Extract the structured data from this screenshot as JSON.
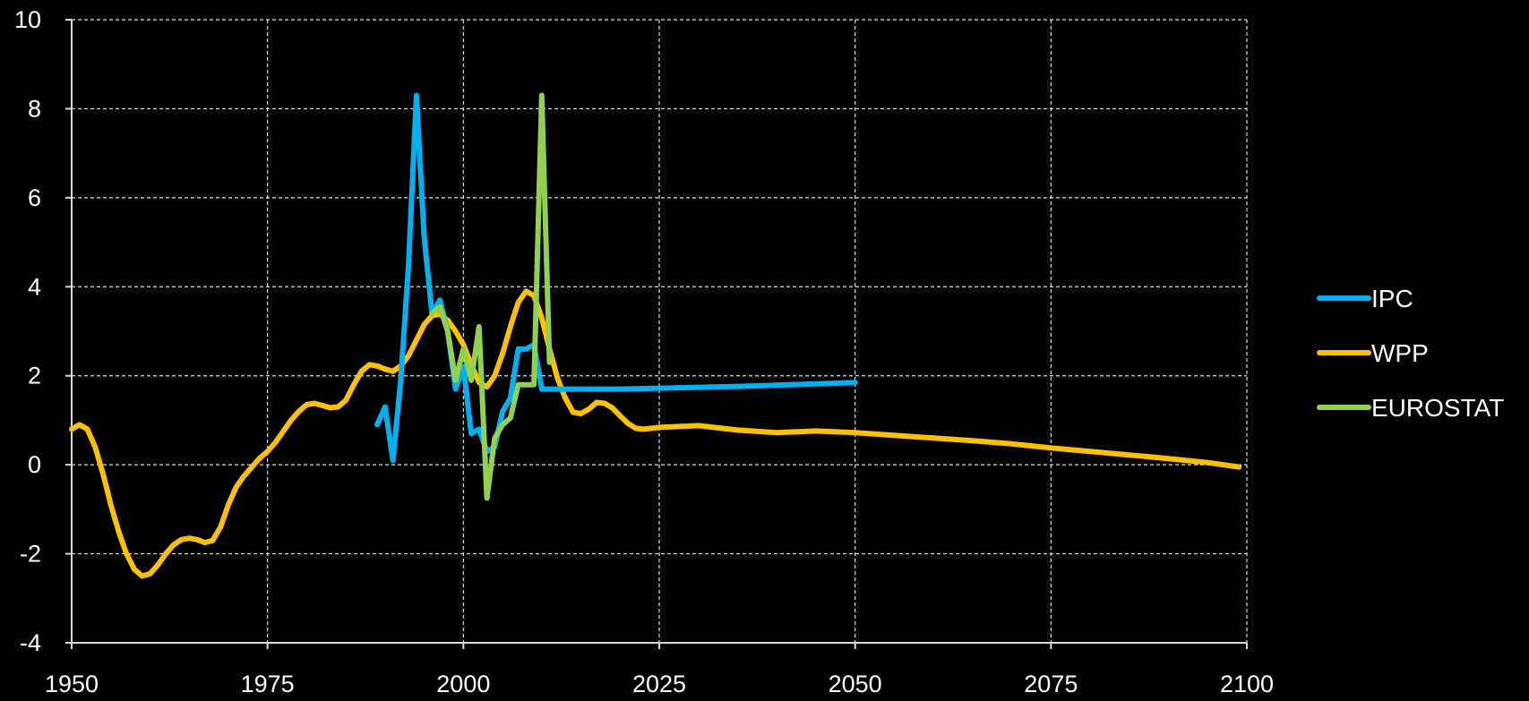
{
  "chart_data": {
    "type": "line",
    "title": "",
    "xlabel": "",
    "ylabel": "",
    "xlim": [
      1950,
      2100
    ],
    "ylim": [
      -4,
      10
    ],
    "x_ticks": [
      1950,
      1975,
      2000,
      2025,
      2050,
      2075,
      2100
    ],
    "y_ticks": [
      10,
      8,
      6,
      4,
      2,
      0,
      -2,
      -4
    ],
    "grid": true,
    "legend_position": "right",
    "background": "#000000",
    "series": [
      {
        "name": "IPC",
        "color": "#00b0f0",
        "points": [
          [
            1989,
            0.9
          ],
          [
            1990,
            1.3
          ],
          [
            1991,
            0.1
          ],
          [
            1992,
            1.9
          ],
          [
            1993,
            4.5
          ],
          [
            1994,
            8.3
          ],
          [
            1995,
            5.1
          ],
          [
            1996,
            3.4
          ],
          [
            1997,
            3.7
          ],
          [
            1998,
            3.0
          ],
          [
            1999,
            1.7
          ],
          [
            2000,
            2.2
          ],
          [
            2001,
            0.7
          ],
          [
            2002,
            0.8
          ],
          [
            2003,
            0.3
          ],
          [
            2004,
            0.4
          ],
          [
            2005,
            1.2
          ],
          [
            2006,
            1.5
          ],
          [
            2007,
            2.6
          ],
          [
            2008,
            2.6
          ],
          [
            2009,
            2.7
          ],
          [
            2010,
            1.7
          ],
          [
            2015,
            1.7
          ],
          [
            2020,
            1.7
          ],
          [
            2025,
            1.72
          ],
          [
            2030,
            1.74
          ],
          [
            2035,
            1.76
          ],
          [
            2040,
            1.79
          ],
          [
            2045,
            1.82
          ],
          [
            2050,
            1.85
          ]
        ]
      },
      {
        "name": "WPP",
        "color": "#ffc000",
        "points": [
          [
            1950,
            0.8
          ],
          [
            1951,
            0.9
          ],
          [
            1952,
            0.8
          ],
          [
            1953,
            0.4
          ],
          [
            1954,
            -0.2
          ],
          [
            1955,
            -0.9
          ],
          [
            1956,
            -1.5
          ],
          [
            1957,
            -2.0
          ],
          [
            1958,
            -2.35
          ],
          [
            1959,
            -2.5
          ],
          [
            1960,
            -2.45
          ],
          [
            1961,
            -2.25
          ],
          [
            1962,
            -2.0
          ],
          [
            1963,
            -1.8
          ],
          [
            1964,
            -1.68
          ],
          [
            1965,
            -1.65
          ],
          [
            1966,
            -1.68
          ],
          [
            1967,
            -1.75
          ],
          [
            1968,
            -1.7
          ],
          [
            1969,
            -1.4
          ],
          [
            1970,
            -0.9
          ],
          [
            1971,
            -0.5
          ],
          [
            1972,
            -0.25
          ],
          [
            1973,
            -0.05
          ],
          [
            1974,
            0.15
          ],
          [
            1975,
            0.3
          ],
          [
            1976,
            0.5
          ],
          [
            1977,
            0.75
          ],
          [
            1978,
            1.0
          ],
          [
            1979,
            1.2
          ],
          [
            1980,
            1.35
          ],
          [
            1981,
            1.38
          ],
          [
            1982,
            1.33
          ],
          [
            1983,
            1.28
          ],
          [
            1984,
            1.3
          ],
          [
            1985,
            1.45
          ],
          [
            1986,
            1.8
          ],
          [
            1987,
            2.1
          ],
          [
            1988,
            2.25
          ],
          [
            1989,
            2.22
          ],
          [
            1990,
            2.15
          ],
          [
            1991,
            2.1
          ],
          [
            1992,
            2.22
          ],
          [
            1993,
            2.45
          ],
          [
            1994,
            2.8
          ],
          [
            1995,
            3.15
          ],
          [
            1996,
            3.35
          ],
          [
            1997,
            3.38
          ],
          [
            1998,
            3.25
          ],
          [
            1999,
            3.0
          ],
          [
            2000,
            2.7
          ],
          [
            2001,
            2.25
          ],
          [
            2002,
            1.85
          ],
          [
            2003,
            1.75
          ],
          [
            2004,
            2.0
          ],
          [
            2005,
            2.5
          ],
          [
            2006,
            3.1
          ],
          [
            2007,
            3.65
          ],
          [
            2008,
            3.9
          ],
          [
            2009,
            3.8
          ],
          [
            2010,
            3.3
          ],
          [
            2011,
            2.6
          ],
          [
            2012,
            1.95
          ],
          [
            2013,
            1.5
          ],
          [
            2014,
            1.18
          ],
          [
            2015,
            1.15
          ],
          [
            2016,
            1.25
          ],
          [
            2017,
            1.4
          ],
          [
            2018,
            1.38
          ],
          [
            2019,
            1.28
          ],
          [
            2020,
            1.1
          ],
          [
            2021,
            0.93
          ],
          [
            2022,
            0.82
          ],
          [
            2023,
            0.8
          ],
          [
            2025,
            0.84
          ],
          [
            2030,
            0.88
          ],
          [
            2035,
            0.78
          ],
          [
            2040,
            0.72
          ],
          [
            2045,
            0.76
          ],
          [
            2050,
            0.72
          ],
          [
            2055,
            0.66
          ],
          [
            2060,
            0.6
          ],
          [
            2065,
            0.54
          ],
          [
            2070,
            0.47
          ],
          [
            2075,
            0.38
          ],
          [
            2080,
            0.3
          ],
          [
            2085,
            0.22
          ],
          [
            2090,
            0.14
          ],
          [
            2095,
            0.05
          ],
          [
            2099,
            -0.05
          ]
        ]
      },
      {
        "name": "EUROSTAT",
        "color": "#92d050",
        "points": [
          [
            1996,
            3.4
          ],
          [
            1997,
            3.55
          ],
          [
            1998,
            3.0
          ],
          [
            1999,
            1.9
          ],
          [
            2000,
            2.6
          ],
          [
            2001,
            1.9
          ],
          [
            2002,
            3.1
          ],
          [
            2003,
            -0.75
          ],
          [
            2004,
            0.6
          ],
          [
            2005,
            0.9
          ],
          [
            2006,
            1.05
          ],
          [
            2007,
            1.8
          ],
          [
            2008,
            1.8
          ],
          [
            2009,
            1.8
          ],
          [
            2010,
            8.3
          ],
          [
            2011,
            2.3
          ]
        ]
      }
    ]
  }
}
